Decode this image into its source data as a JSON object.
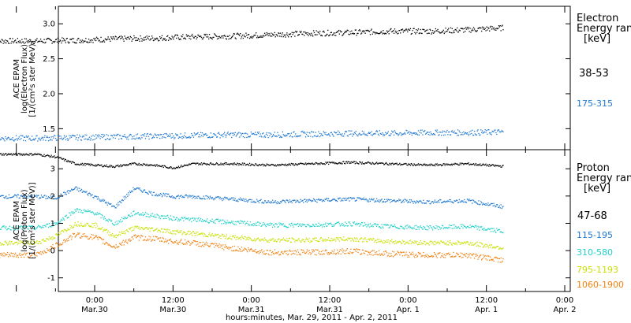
{
  "chart_data": [
    {
      "type": "scatter",
      "panel": "electron",
      "ylabel_lines": [
        "ACE EPAM",
        "log(Electron Flux)",
        "[1/(cm²s ster MeV)]"
      ],
      "ylim": [
        1.2,
        3.25
      ],
      "yticks": [
        1.5,
        2.0,
        2.5,
        3.0
      ],
      "ytick_labels": [
        "1.5",
        "2.0",
        "2.5",
        "3.0"
      ],
      "legend_title": [
        "Electron",
        "Energy ran",
        "[keV]"
      ],
      "series": [
        {
          "name": "38-53",
          "color": "#000000",
          "base": 2.8,
          "trend": 0.22,
          "noise": 0.04,
          "x": [
            0,
            6,
            12,
            18,
            24,
            30,
            36,
            42,
            48,
            54,
            60,
            66,
            72,
            78,
            84,
            90
          ],
          "values": [
            2.76,
            2.77,
            2.79,
            2.8,
            2.82,
            2.83,
            2.85,
            2.87,
            2.88,
            2.9,
            2.9,
            2.92,
            2.95,
            2.97,
            2.99,
            3.01
          ]
        },
        {
          "name": "175-315",
          "color": "#1f78d0",
          "base": 1.4,
          "trend": 0.1,
          "noise": 0.04,
          "x": [
            0,
            6,
            12,
            18,
            24,
            30,
            36,
            42,
            48,
            54,
            60,
            66,
            72,
            78,
            84,
            90
          ],
          "values": [
            1.37,
            1.38,
            1.39,
            1.4,
            1.41,
            1.42,
            1.42,
            1.43,
            1.44,
            1.44,
            1.45,
            1.45,
            1.46,
            1.47,
            1.47,
            1.48
          ]
        }
      ]
    },
    {
      "type": "scatter",
      "panel": "proton",
      "ylabel_lines": [
        "ACE EPAM",
        "log(Proton Flux)",
        "[1/(cm²s ster MeV)]"
      ],
      "ylim": [
        -1.5,
        3.7
      ],
      "yticks": [
        -1,
        0,
        1,
        2,
        3
      ],
      "ytick_labels": [
        "-1",
        "0",
        "1",
        "2",
        "3"
      ],
      "legend_title": [
        "Proton",
        "Energy ran",
        "[keV]"
      ],
      "series": [
        {
          "name": "47-68",
          "color": "#000000",
          "noise": 0.04,
          "x": [
            -6,
            -3,
            0,
            3,
            6,
            9,
            12,
            15,
            18,
            24,
            30,
            36,
            42,
            48,
            54,
            60,
            66,
            72,
            78,
            84,
            90
          ],
          "values": [
            3.55,
            3.45,
            3.2,
            3.15,
            3.1,
            3.2,
            3.15,
            3.05,
            3.2,
            3.2,
            3.15,
            3.2,
            3.25,
            3.2,
            3.15,
            3.2,
            3.1,
            3.05,
            3.1,
            3.08,
            3.1
          ]
        },
        {
          "name": "115-195",
          "color": "#1f78d0",
          "noise": 0.07,
          "x": [
            -6,
            -3,
            0,
            3,
            6,
            9,
            12,
            15,
            18,
            24,
            30,
            36,
            42,
            48,
            54,
            60,
            66,
            72,
            78,
            84,
            90
          ],
          "values": [
            2.0,
            1.95,
            2.3,
            2.0,
            1.6,
            2.3,
            2.1,
            2.0,
            2.0,
            1.9,
            1.8,
            1.85,
            1.9,
            1.85,
            1.8,
            1.85,
            1.6,
            1.5,
            1.4,
            1.5,
            1.75
          ]
        },
        {
          "name": "310-580",
          "color": "#20d0c8",
          "noise": 0.08,
          "x": [
            -6,
            -3,
            0,
            3,
            6,
            9,
            12,
            15,
            18,
            24,
            30,
            36,
            42,
            48,
            54,
            60,
            66,
            72,
            78,
            84,
            90
          ],
          "values": [
            0.85,
            1.0,
            1.5,
            1.4,
            1.0,
            1.4,
            1.3,
            1.2,
            1.15,
            1.05,
            0.95,
            0.95,
            1.0,
            0.9,
            0.85,
            0.9,
            0.7,
            0.55,
            0.5,
            0.6,
            0.8
          ]
        },
        {
          "name": "795-1193",
          "color": "#c8e000",
          "noise": 0.08,
          "x": [
            -6,
            -3,
            0,
            3,
            6,
            9,
            12,
            15,
            18,
            24,
            30,
            36,
            42,
            48,
            54,
            60,
            66,
            72,
            78,
            84,
            90
          ],
          "values": [
            0.3,
            0.55,
            1.0,
            0.95,
            0.55,
            0.85,
            0.8,
            0.7,
            0.65,
            0.5,
            0.4,
            0.4,
            0.45,
            0.35,
            0.3,
            0.3,
            0.1,
            0.0,
            -0.05,
            0.05,
            0.3
          ]
        },
        {
          "name": "1060-1900",
          "color": "#f08010",
          "noise": 0.1,
          "x": [
            -6,
            -3,
            0,
            3,
            6,
            9,
            12,
            15,
            18,
            24,
            30,
            36,
            42,
            48,
            54,
            60,
            66,
            72,
            78,
            84,
            90
          ],
          "values": [
            -0.15,
            0.2,
            0.6,
            0.5,
            0.15,
            0.5,
            0.45,
            0.35,
            0.3,
            0.1,
            -0.05,
            -0.05,
            0.0,
            -0.1,
            -0.15,
            -0.15,
            -0.35,
            -0.45,
            -0.5,
            -0.4,
            -0.05
          ]
        }
      ]
    }
  ],
  "x_axis": {
    "ticks": [
      0,
      12,
      24,
      36,
      48,
      60,
      72
    ],
    "tick_time_labels": [
      "0:00",
      "12:00",
      "0:00",
      "12:00",
      "0:00",
      "12:00",
      "0:00"
    ],
    "tick_date_labels": [
      "Mar.30",
      "Mar.30",
      "Mar.31",
      "Mar.31",
      "Apr. 1",
      "Apr. 1",
      "Apr. 2"
    ],
    "xlabel": "hours:minutes, Mar. 29, 2011 - Apr. 2, 2011"
  }
}
